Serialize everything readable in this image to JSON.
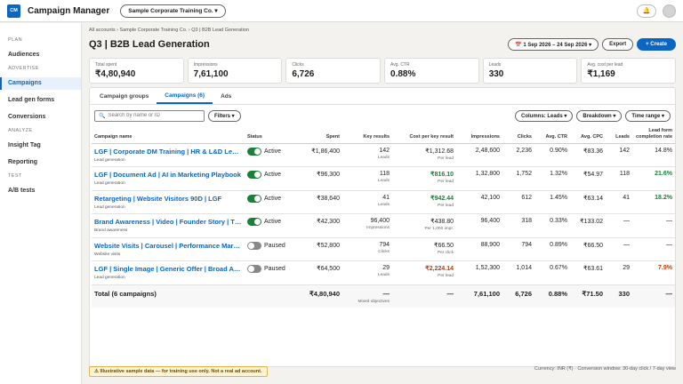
{
  "app": {
    "logo": "CM",
    "title": "Campaign Manager",
    "account": "Sample Corporate Training Co. ▾",
    "bell_icon": "🔔"
  },
  "sidebar": {
    "sections": [
      {
        "label": "PLAN",
        "items": [
          "Audiences"
        ]
      },
      {
        "label": "ADVERTISE",
        "items": [
          "Campaigns",
          "Lead gen forms",
          "Conversions"
        ]
      },
      {
        "label": "ANALYZE",
        "items": [
          "Insight Tag",
          "Reporting"
        ]
      },
      {
        "label": "TEST",
        "items": [
          "A/B tests"
        ]
      }
    ],
    "active": "Campaigns"
  },
  "breadcrumb": "All accounts › Sample Corporate Training Co. › Q3 | B2B Lead Generation",
  "page_title": "Q3 | B2B Lead Generation",
  "actions": {
    "date_range": "📅 1 Sep 2026 – 24 Sep 2026 ▾",
    "export": "Export",
    "create": "+ Create"
  },
  "kpis": [
    {
      "label": "Total spent",
      "value": "₹4,80,940"
    },
    {
      "label": "Impressions",
      "value": "7,61,100"
    },
    {
      "label": "Clicks",
      "value": "6,726"
    },
    {
      "label": "Avg. CTR",
      "value": "0.88%"
    },
    {
      "label": "Leads",
      "value": "330"
    },
    {
      "label": "Avg. cost per lead",
      "value": "₹1,169"
    }
  ],
  "tabs": [
    "Campaign groups",
    "Campaigns (6)",
    "Ads"
  ],
  "toolbar": {
    "search_placeholder": "Search by name or ID",
    "filters": "Filters ▾",
    "columns": "Columns: Leads ▾",
    "breakdown": "Breakdown ▾",
    "time_range": "Time range ▾"
  },
  "table": {
    "headers": {
      "name": "Campaign name",
      "status": "Status",
      "spent": "Spent",
      "key_results": "Key results",
      "cost_key": "Cost per key result",
      "impressions": "Impressions",
      "clicks": "Clicks",
      "ctr": "Avg. CTR",
      "cpc": "Avg. CPC",
      "leads": "Leads",
      "completion": "Lead form completion rate"
    },
    "rows": [
      {
        "name": "LGF | Corporate DM Training | HR & L&D Leaders",
        "objective": "Lead generation",
        "status": "Active",
        "on": true,
        "spent": "₹1,86,400",
        "key_results": "142",
        "key_sub": "Leads",
        "cost": "₹1,312.68",
        "cost_sub": "Per lead",
        "cost_flag": "",
        "impressions": "2,48,600",
        "clicks": "2,236",
        "ctr": "0.90%",
        "cpc": "₹83.36",
        "leads": "142",
        "completion": "14.8%",
        "completion_flag": ""
      },
      {
        "name": "LGF | Document Ad | AI in Marketing Playbook",
        "objective": "Lead generation",
        "status": "Active",
        "on": true,
        "spent": "₹96,300",
        "key_results": "118",
        "key_sub": "Leads",
        "cost": "₹816.10",
        "cost_sub": "Per lead",
        "cost_flag": "good",
        "impressions": "1,32,800",
        "clicks": "1,752",
        "ctr": "1.32%",
        "cpc": "₹54.97",
        "leads": "118",
        "completion": "21.6%",
        "completion_flag": "good"
      },
      {
        "name": "Retargeting | Website Visitors 90D | LGF",
        "objective": "Lead generation",
        "status": "Active",
        "on": true,
        "spent": "₹38,640",
        "key_results": "41",
        "key_sub": "Leads",
        "cost": "₹942.44",
        "cost_sub": "Per lead",
        "cost_flag": "good",
        "impressions": "42,100",
        "clicks": "612",
        "ctr": "1.45%",
        "cpc": "₹63.14",
        "leads": "41",
        "completion": "18.2%",
        "completion_flag": "good"
      },
      {
        "name": "Brand Awareness | Video | Founder Story | Thought Leadership",
        "objective": "Brand awareness",
        "status": "Active",
        "on": true,
        "spent": "₹42,300",
        "key_results": "96,400",
        "key_sub": "Impressions",
        "cost": "₹438.80",
        "cost_sub": "Per 1,000 impr.",
        "cost_flag": "",
        "impressions": "96,400",
        "clicks": "318",
        "ctr": "0.33%",
        "cpc": "₹133.02",
        "leads": "—",
        "completion": "—",
        "completion_flag": ""
      },
      {
        "name": "Website Visits | Carousel | Performance Marketing Course",
        "objective": "Website visits",
        "status": "Paused",
        "on": false,
        "spent": "₹52,800",
        "key_results": "794",
        "key_sub": "Clicks",
        "cost": "₹66.50",
        "cost_sub": "Per click",
        "cost_flag": "",
        "impressions": "88,900",
        "clicks": "794",
        "ctr": "0.89%",
        "cpc": "₹66.50",
        "leads": "—",
        "completion": "—",
        "completion_flag": ""
      },
      {
        "name": "LGF | Single Image | Generic Offer | Broad Audience",
        "objective": "Lead generation",
        "status": "Paused",
        "on": false,
        "spent": "₹64,500",
        "key_results": "29",
        "key_sub": "Leads",
        "cost": "₹2,224.14",
        "cost_sub": "Per lead",
        "cost_flag": "bad",
        "impressions": "1,52,300",
        "clicks": "1,014",
        "ctr": "0.67%",
        "cpc": "₹63.61",
        "leads": "29",
        "completion": "7.9%",
        "completion_flag": "bad"
      }
    ],
    "total": {
      "name": "Total (6 campaigns)",
      "spent": "₹4,80,940",
      "key_results": "—",
      "key_sub": "Mixed objectives",
      "cost": "—",
      "impressions": "7,61,100",
      "clicks": "6,726",
      "ctr": "0.88%",
      "cpc": "₹71.50",
      "leads": "330",
      "completion": "—"
    }
  },
  "footer": {
    "notice": "⚠ Illustrative sample data — for training use only. Not a real ad account.",
    "currency": "Currency: INR (₹) · Conversion window: 30-day click / 7-day view"
  }
}
